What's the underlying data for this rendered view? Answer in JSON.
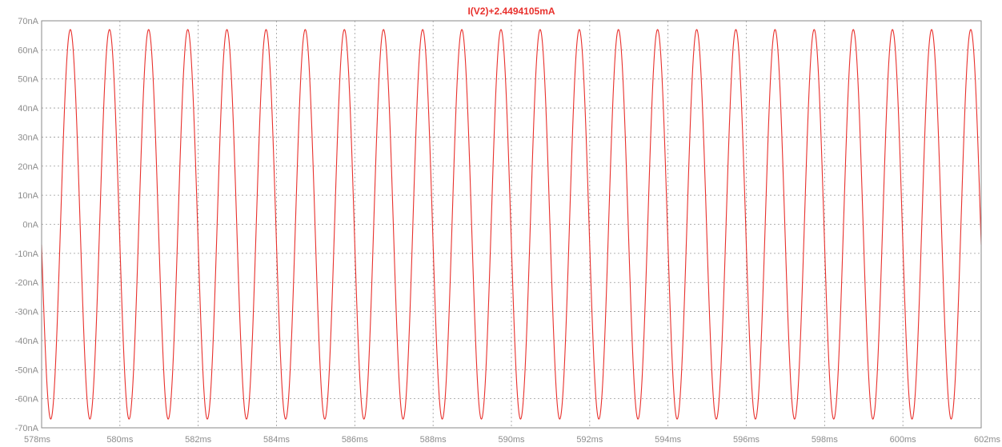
{
  "chart_data": {
    "type": "line",
    "title": "I(V2)+2.4494105mA",
    "xlabel": "",
    "ylabel": "",
    "x_unit": "ms",
    "y_unit": "nA",
    "xlim": [
      578,
      602
    ],
    "ylim": [
      -70,
      70
    ],
    "x_ticks": [
      "578ms",
      "580ms",
      "582ms",
      "584ms",
      "586ms",
      "588ms",
      "590ms",
      "592ms",
      "594ms",
      "596ms",
      "598ms",
      "600ms",
      "602ms"
    ],
    "y_ticks": [
      "70nA",
      "60nA",
      "50nA",
      "40nA",
      "30nA",
      "20nA",
      "10nA",
      "0nA",
      "-10nA",
      "-20nA",
      "-30nA",
      "-40nA",
      "-50nA",
      "-60nA",
      "-70nA"
    ],
    "grid": true,
    "series": [
      {
        "name": "I(V2)+2.4494105mA",
        "color": "#e8302c",
        "waveform": "sine",
        "amplitude_nA": 67,
        "offset_nA": 0,
        "frequency_Hz": 1000,
        "value_at_start_nA": -7,
        "initial_slope": "falling"
      }
    ]
  }
}
